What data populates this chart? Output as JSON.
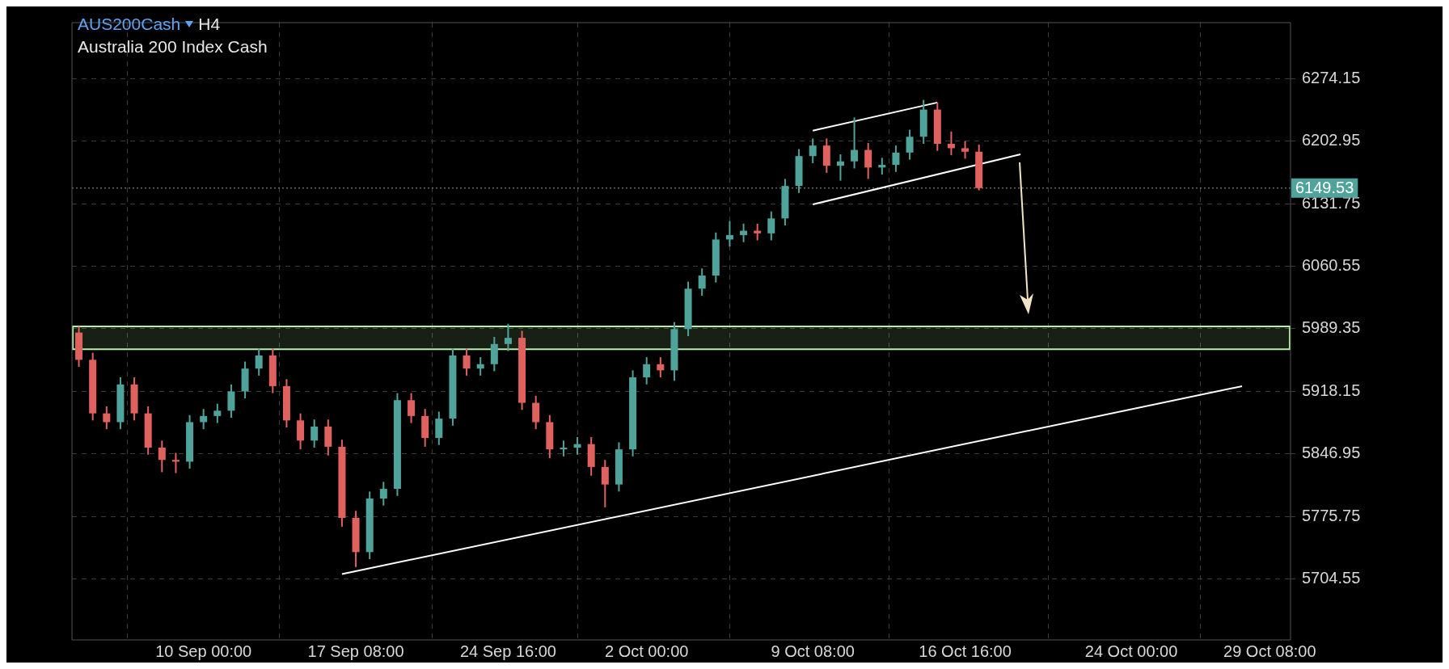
{
  "chart_data": {
    "type": "candlestick",
    "title": "AUS200Cash",
    "subtitle": "Australia 200 Index Cash",
    "annotations": [
      "H4"
    ],
    "categories": [
      null,
      null,
      null,
      null,
      null,
      null,
      null,
      null,
      null,
      "10 Sep 00:00",
      null,
      null,
      null,
      null,
      null,
      null,
      null,
      null,
      null,
      null,
      "17 Sep 08:00",
      null,
      null,
      null,
      null,
      null,
      null,
      null,
      null,
      null,
      null,
      "24 Sep 16:00",
      null,
      null,
      null,
      null,
      null,
      null,
      null,
      null,
      null,
      "2 Oct 00:00",
      null,
      null,
      null,
      null,
      null,
      null,
      null,
      null,
      null,
      null,
      null,
      "9 Oct 08:00",
      null,
      null,
      null,
      null,
      null,
      null,
      null,
      null,
      null,
      null,
      "16 Oct 16:00",
      null,
      null,
      null,
      null,
      null,
      null,
      null,
      null,
      null,
      null,
      null,
      "24 Oct 00:00",
      null,
      null,
      null,
      null,
      null,
      null,
      null,
      null,
      null,
      "29 Oct 08:00",
      null
    ],
    "ohlc": [
      [
        5985,
        5992,
        5946,
        5954
      ],
      [
        5954,
        5962,
        5885,
        5893
      ],
      [
        5893,
        5901,
        5875,
        5883
      ],
      [
        5883,
        5934,
        5875,
        5926
      ],
      [
        5926,
        5934,
        5885,
        5893
      ],
      [
        5893,
        5901,
        5846,
        5854
      ],
      [
        5854,
        5862,
        5826,
        5840
      ],
      [
        5840,
        5848,
        5825,
        5838
      ],
      [
        5838,
        5891,
        5830,
        5883
      ],
      [
        5883,
        5898,
        5875,
        5890
      ],
      [
        5890,
        5904,
        5882,
        5896
      ],
      [
        5896,
        5926,
        5888,
        5918
      ],
      [
        5918,
        5952,
        5910,
        5944
      ],
      [
        5944,
        5967,
        5936,
        5959
      ],
      [
        5959,
        5967,
        5916,
        5924
      ],
      [
        5924,
        5932,
        5877,
        5885
      ],
      [
        5885,
        5893,
        5852,
        5862
      ],
      [
        5862,
        5886,
        5854,
        5878
      ],
      [
        5878,
        5886,
        5845,
        5855
      ],
      [
        5855,
        5863,
        5764,
        5774
      ],
      [
        5774,
        5782,
        5718,
        5735
      ],
      [
        5735,
        5804,
        5727,
        5796
      ],
      [
        5796,
        5815,
        5788,
        5807
      ],
      [
        5807,
        5916,
        5799,
        5908
      ],
      [
        5908,
        5916,
        5882,
        5890
      ],
      [
        5890,
        5898,
        5855,
        5865
      ],
      [
        5865,
        5895,
        5857,
        5887
      ],
      [
        5887,
        5967,
        5879,
        5959
      ],
      [
        5959,
        5967,
        5936,
        5944
      ],
      [
        5944,
        5957,
        5936,
        5949
      ],
      [
        5949,
        5980,
        5941,
        5972
      ],
      [
        5972,
        5995,
        5964,
        5979
      ],
      [
        5979,
        5987,
        5897,
        5905
      ],
      [
        5905,
        5913,
        5875,
        5883
      ],
      [
        5883,
        5891,
        5842,
        5852
      ],
      [
        5852,
        5862,
        5844,
        5854
      ],
      [
        5854,
        5866,
        5846,
        5858
      ],
      [
        5858,
        5866,
        5822,
        5832
      ],
      [
        5832,
        5840,
        5786,
        5812
      ],
      [
        5812,
        5860,
        5804,
        5852
      ],
      [
        5852,
        5942,
        5844,
        5934
      ],
      [
        5934,
        5957,
        5926,
        5949
      ],
      [
        5949,
        5957,
        5934,
        5942
      ],
      [
        5942,
        5997,
        5930,
        5989
      ],
      [
        5989,
        6043,
        5981,
        6035
      ],
      [
        6035,
        6058,
        6027,
        6050
      ],
      [
        6050,
        6099,
        6042,
        6091
      ],
      [
        6091,
        6112,
        6083,
        6096
      ],
      [
        6096,
        6109,
        6088,
        6101
      ],
      [
        6101,
        6109,
        6090,
        6098
      ],
      [
        6098,
        6123,
        6090,
        6115
      ],
      [
        6115,
        6160,
        6107,
        6152
      ],
      [
        6152,
        6194,
        6144,
        6186
      ],
      [
        6186,
        6206,
        6178,
        6198
      ],
      [
        6198,
        6206,
        6167,
        6175
      ],
      [
        6175,
        6188,
        6158,
        6180
      ],
      [
        6180,
        6230,
        6172,
        6193
      ],
      [
        6193,
        6201,
        6160,
        6173
      ],
      [
        6173,
        6184,
        6165,
        6176
      ],
      [
        6176,
        6198,
        6168,
        6190
      ],
      [
        6190,
        6216,
        6182,
        6208
      ],
      [
        6208,
        6250,
        6200,
        6239
      ],
      [
        6239,
        6247,
        6192,
        6200
      ],
      [
        6200,
        6214,
        6187,
        6195
      ],
      [
        6195,
        6203,
        6183,
        6191
      ],
      [
        6191,
        6199,
        6147,
        6149.53
      ],
      null,
      null,
      null,
      null,
      null,
      null,
      null,
      null,
      null,
      null,
      null,
      null,
      null,
      null,
      null,
      null,
      null,
      null,
      null,
      null,
      null,
      null
    ],
    "colors": [
      "#e0625f",
      "#e0625f",
      "#e0625f",
      "#4fa39a",
      "#e0625f",
      "#e0625f",
      "#e0625f",
      "#e0625f",
      "#4fa39a",
      "#4fa39a",
      "#4fa39a",
      "#4fa39a",
      "#4fa39a",
      "#4fa39a",
      "#e0625f",
      "#e0625f",
      "#e0625f",
      "#4fa39a",
      "#e0625f",
      "#e0625f",
      "#e0625f",
      "#4fa39a",
      "#4fa39a",
      "#4fa39a",
      "#e0625f",
      "#e0625f",
      "#4fa39a",
      "#4fa39a",
      "#e0625f",
      "#4fa39a",
      "#4fa39a",
      "#4fa39a",
      "#e0625f",
      "#e0625f",
      "#e0625f",
      "#4fa39a",
      "#4fa39a",
      "#e0625f",
      "#e0625f",
      "#4fa39a",
      "#4fa39a",
      "#4fa39a",
      "#e0625f",
      "#4fa39a",
      "#4fa39a",
      "#4fa39a",
      "#4fa39a",
      "#4fa39a",
      "#4fa39a",
      "#e0625f",
      "#4fa39a",
      "#4fa39a",
      "#4fa39a",
      "#4fa39a",
      "#e0625f",
      "#4fa39a",
      "#4fa39a",
      "#e0625f",
      "#4fa39a",
      "#4fa39a",
      "#4fa39a",
      "#4fa39a",
      "#e0625f",
      "#e0625f",
      "#e0625f",
      "#e0625f",
      null,
      null,
      null,
      null,
      null,
      null,
      null,
      null,
      null,
      null,
      null,
      null,
      null,
      null,
      null,
      null,
      null,
      null,
      null,
      null,
      null,
      null
    ],
    "series": [
      {
        "type": "line",
        "color": "#ffffff",
        "values": [
          null,
          null,
          null,
          null,
          null,
          null,
          null,
          null,
          null,
          null,
          null,
          null,
          null,
          null,
          null,
          null,
          null,
          null,
          null,
          5710,
          null,
          null,
          null,
          null,
          null,
          null,
          null,
          null,
          null,
          null,
          null,
          null,
          null,
          null,
          null,
          null,
          null,
          null,
          null,
          null,
          null,
          null,
          null,
          null,
          null,
          null,
          null,
          null,
          null,
          null,
          null,
          null,
          null,
          null,
          null,
          null,
          null,
          null,
          null,
          null,
          null,
          null,
          null,
          null,
          null,
          null,
          null,
          null,
          null,
          null,
          null,
          null,
          null,
          null,
          null,
          null,
          null,
          null,
          null,
          null,
          null,
          null,
          null,
          null,
          5924,
          null,
          null,
          null
        ]
      },
      {
        "type": "line",
        "color": "#ffffff",
        "values": [
          null,
          null,
          null,
          null,
          null,
          null,
          null,
          null,
          null,
          null,
          null,
          null,
          null,
          null,
          null,
          null,
          null,
          null,
          null,
          null,
          null,
          null,
          null,
          null,
          null,
          null,
          null,
          null,
          null,
          null,
          null,
          null,
          null,
          null,
          null,
          null,
          null,
          null,
          null,
          null,
          null,
          null,
          null,
          null,
          null,
          null,
          null,
          null,
          null,
          null,
          null,
          null,
          null,
          6215,
          null,
          null,
          null,
          null,
          null,
          null,
          null,
          null,
          6247,
          null,
          null,
          null,
          null,
          null,
          null,
          null,
          null,
          null,
          null,
          null,
          null,
          null,
          null,
          null,
          null,
          null,
          null,
          null,
          null,
          null,
          null,
          null,
          null,
          null
        ]
      },
      {
        "type": "line",
        "color": "#ffffff",
        "values": [
          null,
          null,
          null,
          null,
          null,
          null,
          null,
          null,
          null,
          null,
          null,
          null,
          null,
          null,
          null,
          null,
          null,
          null,
          null,
          null,
          null,
          null,
          null,
          null,
          null,
          null,
          null,
          null,
          null,
          null,
          null,
          null,
          null,
          null,
          null,
          null,
          null,
          null,
          null,
          null,
          null,
          null,
          null,
          null,
          null,
          null,
          null,
          null,
          null,
          null,
          null,
          null,
          null,
          6131,
          null,
          null,
          null,
          null,
          null,
          null,
          null,
          null,
          null,
          null,
          null,
          null,
          null,
          null,
          6188,
          null,
          null,
          null,
          null,
          null,
          null,
          null,
          null,
          null,
          null,
          null,
          null,
          null,
          null,
          null,
          null,
          null,
          null,
          null
        ]
      }
    ],
    "ylim": [
      5635,
      6338
    ],
    "yticks": [
      5704.55,
      5775.75,
      5846.95,
      5918.15,
      5989.35,
      6060.55,
      6131.75,
      6202.95,
      6274.15
    ],
    "ref_lines": [
      {
        "axis": "y",
        "value": 6149.53,
        "label": "6149.53",
        "color": "#9a9a9a",
        "line_style": "dotted"
      }
    ],
    "bands": [
      {
        "axis": "y",
        "from": 5966,
        "to": 5992,
        "color": "#b4f0a8"
      }
    ],
    "grid": true
  }
}
